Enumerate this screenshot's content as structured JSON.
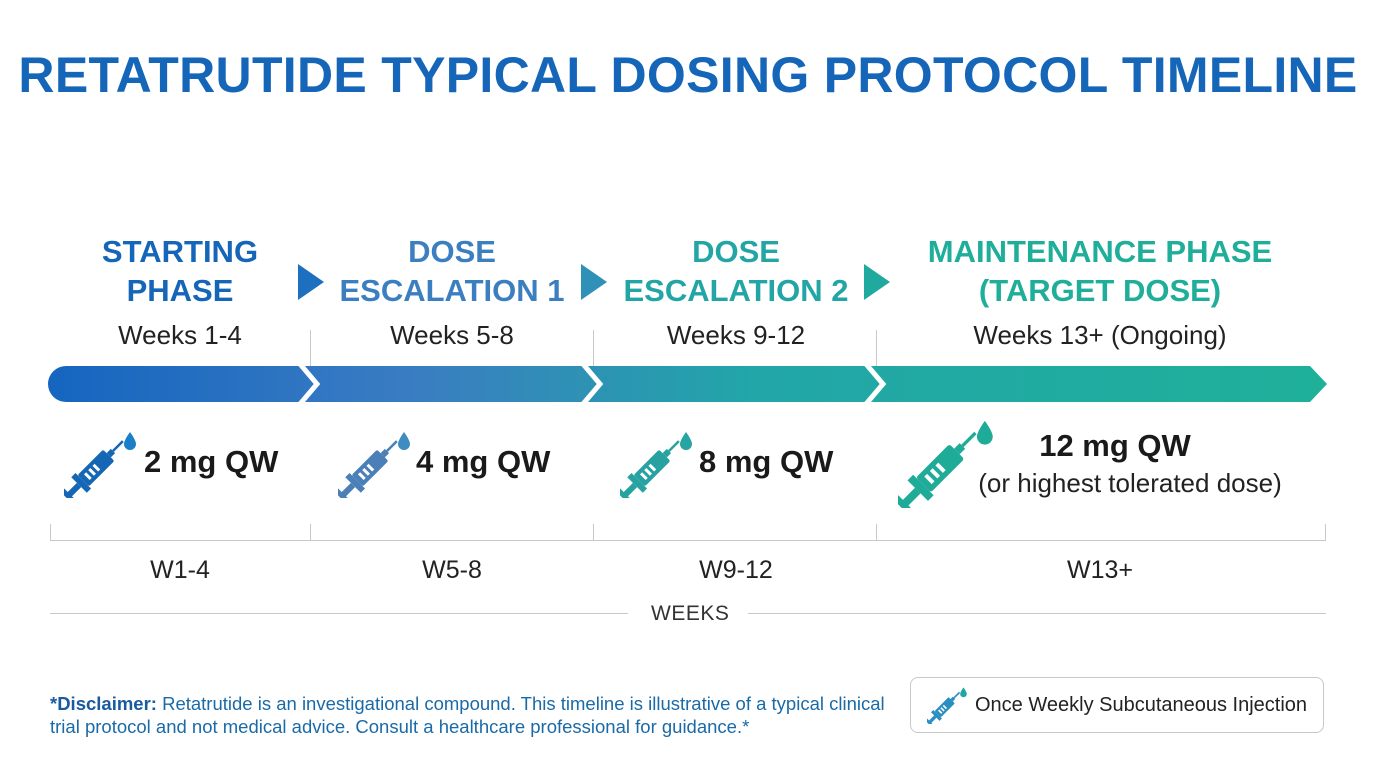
{
  "title": "RETATRUTIDE TYPICAL DOSING PROTOCOL TIMELINE",
  "phases": [
    {
      "head_line1": "STARTING",
      "head_line2": "PHASE",
      "weeks": "Weeks 1-4",
      "dose": "2 mg QW",
      "dose_sub": "",
      "axis_label": "W1-4",
      "color": "#1565b8"
    },
    {
      "head_line1": "DOSE",
      "head_line2": "ESCALATION 1",
      "weeks": "Weeks 5-8",
      "dose": "4 mg QW",
      "dose_sub": "",
      "axis_label": "W5-8",
      "color": "#3b7dc0"
    },
    {
      "head_line1": "DOSE",
      "head_line2": "ESCALATION 2",
      "weeks": "Weeks 9-12",
      "dose": "8 mg QW",
      "dose_sub": "",
      "axis_label": "W9-12",
      "color": "#22a6a4"
    },
    {
      "head_line1": "MAINTENANCE PHASE",
      "head_line2": "(TARGET DOSE)",
      "weeks": "Weeks 13+ (Ongoing)",
      "dose": "12 mg QW",
      "dose_sub": "(or highest tolerated dose)",
      "axis_label": "W13+",
      "color": "#1fae99"
    }
  ],
  "axis_title": "WEEKS",
  "disclaimer": {
    "bold": "*Disclaimer:",
    "text": " Retatrutide is an investigational compound. This timeline is illustrative of a typical clinical trial protocol and not medical advice. Consult a healthcare professional for guidance.*"
  },
  "legend": {
    "label": "Once Weekly Subcutaneous Injection",
    "icon": "syringe-icon"
  },
  "colors": {
    "title": "#1565b8",
    "gradient_start": "#1565c0",
    "gradient_end": "#1fb09a"
  }
}
